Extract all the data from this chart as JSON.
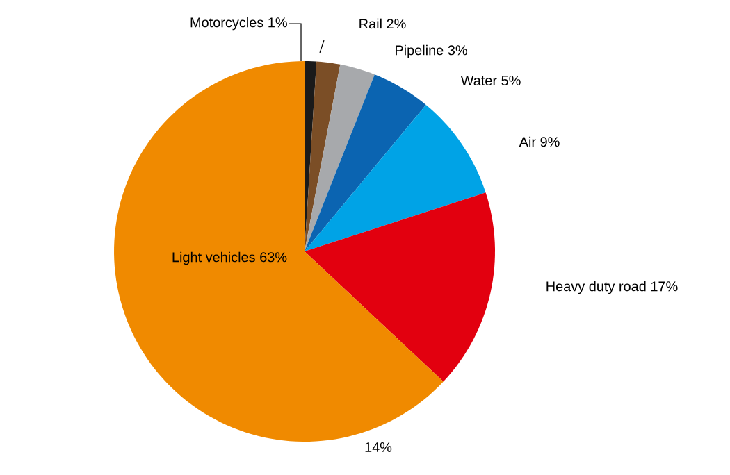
{
  "chart_data": {
    "type": "pie",
    "categories": [
      "Motorcycles",
      "Rail",
      "Pipeline",
      "Water",
      "Air",
      "Heavy duty road",
      "Light vehicles"
    ],
    "values": [
      1,
      2,
      3,
      5,
      9,
      17,
      63
    ],
    "value_labels": [
      "1%",
      "2%",
      "3%",
      "5%",
      "9%",
      "17%",
      "63%"
    ],
    "colors": [
      "#1a1a1a",
      "#7b4e26",
      "#a7a9ac",
      "#0b64b1",
      "#00a3e6",
      "#e2000f",
      "#f08a00"
    ],
    "annotations": [
      "14%"
    ]
  }
}
